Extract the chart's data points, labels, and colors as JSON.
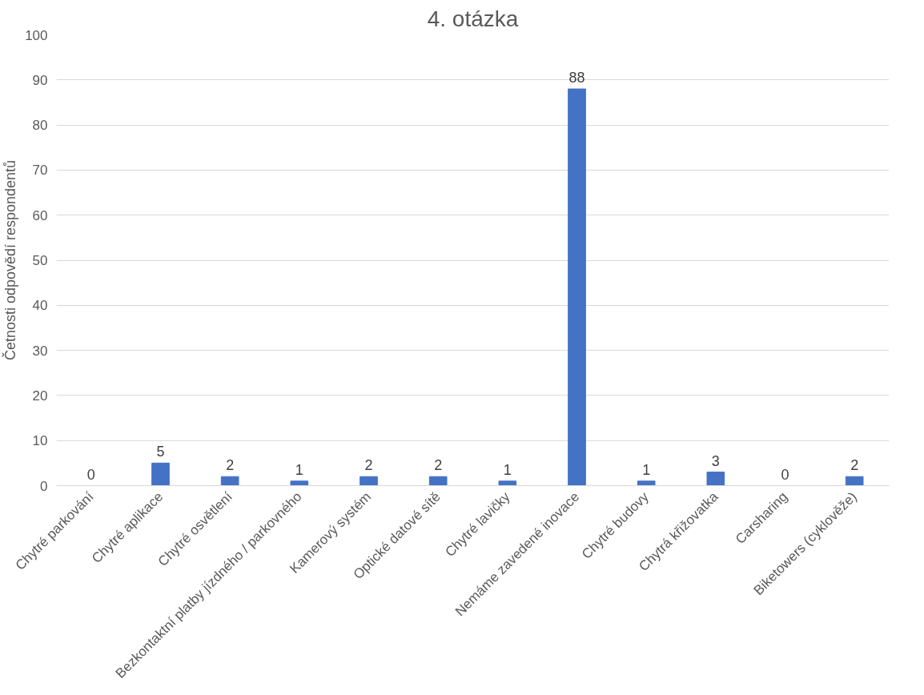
{
  "chart_data": {
    "type": "bar",
    "title": "4. otázka",
    "ylabel": "Četnosti odpovědí respondentů",
    "categories": [
      "Chytré parkování",
      "Chytré aplikace",
      "Chytré osvětlení",
      "Bezkontaktní platby jízdného / parkovného",
      "Kamerový systém",
      "Optické datové sítě",
      "Chytré lavičky",
      "Nemáme zavedené inovace",
      "Chytré budovy",
      "Chytrá křižovatka",
      "Carsharing",
      "Biketowers (cyklověže)"
    ],
    "values": [
      0,
      5,
      2,
      1,
      2,
      2,
      1,
      88,
      1,
      3,
      0,
      2
    ],
    "color": "#4472c4",
    "ylim": [
      0,
      100
    ],
    "yticks": [
      0,
      10,
      20,
      30,
      40,
      50,
      60,
      70,
      80,
      90,
      100
    ],
    "grid": "y",
    "data_labels": true
  }
}
